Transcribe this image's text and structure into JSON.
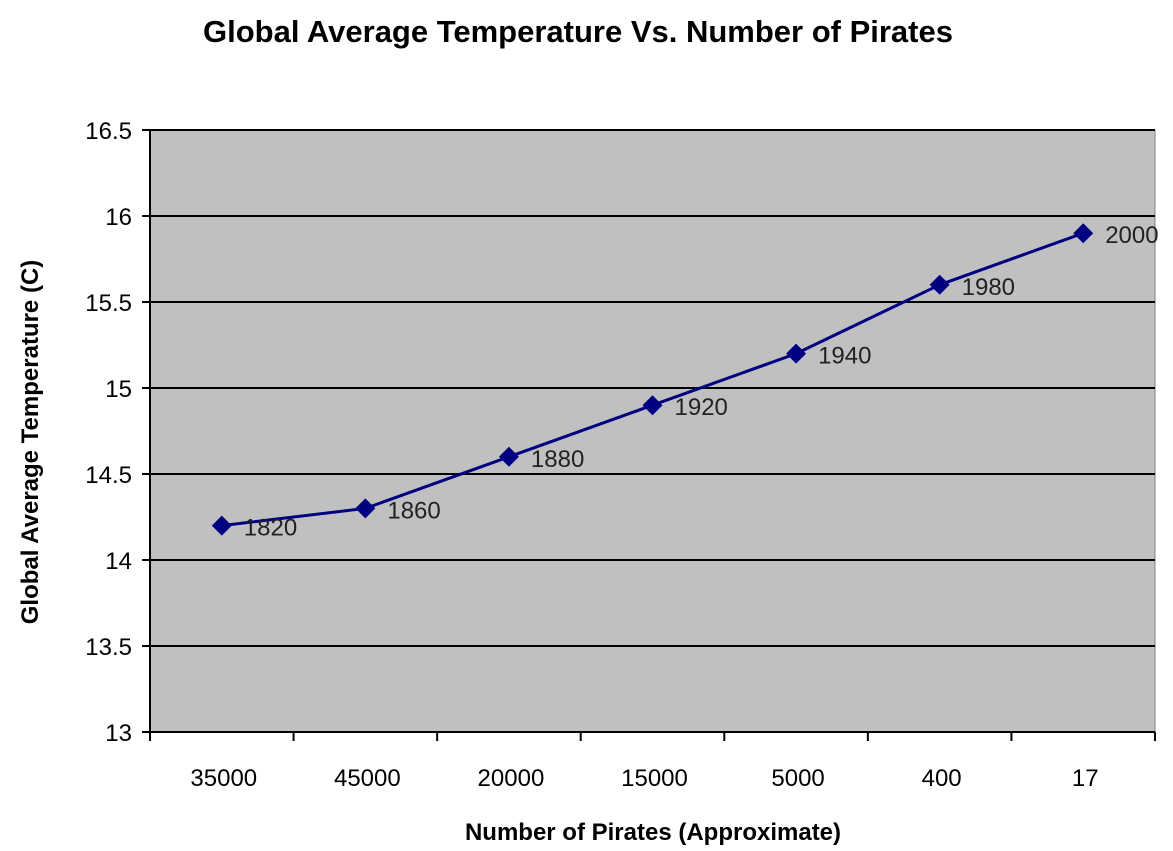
{
  "chart_data": {
    "type": "line",
    "title": "Global Average Temperature Vs. Number of Pirates",
    "xlabel": "Number of Pirates (Approximate)",
    "ylabel": "Global Average Temperature (C)",
    "categories": [
      "35000",
      "45000",
      "20000",
      "15000",
      "5000",
      "400",
      "17"
    ],
    "series": [
      {
        "values": [
          14.2,
          14.3,
          14.6,
          14.9,
          15.2,
          15.6,
          15.9
        ],
        "point_labels": [
          "1820",
          "1860",
          "1880",
          "1920",
          "1940",
          "1980",
          "2000"
        ]
      }
    ],
    "ylim": [
      13,
      16.5
    ],
    "yticks": [
      "13",
      "13.5",
      "14",
      "14.5",
      "15",
      "15.5",
      "16",
      "16.5"
    ],
    "grid": true,
    "legend": "none",
    "colors": {
      "plot_background": "#c0c0c0",
      "series_line": "#000080",
      "gridline": "#000000"
    },
    "marker": "diamond"
  }
}
